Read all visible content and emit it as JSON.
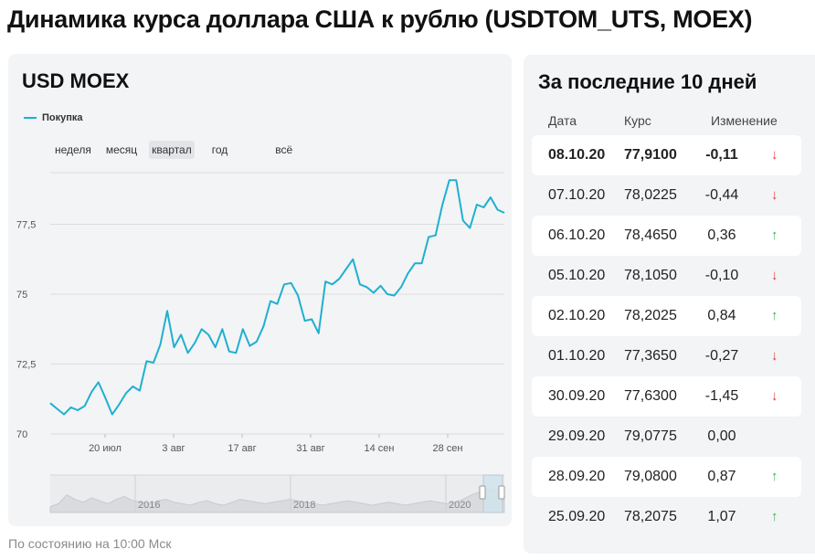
{
  "page": {
    "title": "Динамика курса доллара США к рублю (USDTOM_UTS, MOEX)",
    "note": "По состоянию на 10:00 Мск"
  },
  "chart_card": {
    "title": "USD MOEX",
    "legend_label": "Покупка",
    "periods": [
      "неделя",
      "месяц",
      "квартал",
      "год",
      "всё"
    ],
    "active_period": "квартал",
    "line_color": "#1fb0cf"
  },
  "chart_data": {
    "type": "line",
    "title": "USD MOEX",
    "xlabel": "",
    "ylabel": "",
    "ylim": [
      70,
      80
    ],
    "yticks": [
      "70",
      "72,5",
      "75",
      "77,5"
    ],
    "xticks": [
      "20 июл",
      "3 авг",
      "17 авг",
      "31 авг",
      "14 сен",
      "28 сен"
    ],
    "grid": true,
    "legend": "top-left",
    "series": [
      {
        "name": "Покупка",
        "values": [
          71.1,
          70.9,
          70.7,
          70.95,
          70.85,
          71.0,
          71.5,
          71.85,
          71.3,
          70.7,
          71.05,
          71.45,
          71.7,
          71.55,
          72.6,
          72.55,
          73.2,
          74.4,
          73.1,
          73.55,
          72.9,
          73.25,
          73.75,
          73.55,
          73.1,
          73.75,
          72.95,
          72.9,
          73.75,
          73.15,
          73.3,
          73.85,
          74.75,
          74.65,
          75.35,
          75.4,
          74.95,
          74.05,
          74.1,
          73.6,
          75.45,
          75.35,
          75.55,
          75.9,
          76.25,
          75.35,
          75.25,
          75.05,
          75.3,
          75.0,
          74.95,
          75.25,
          75.75,
          76.1,
          76.1,
          77.05,
          77.1,
          78.2,
          79.08,
          79.0775,
          77.63,
          77.365,
          78.2025,
          78.105,
          78.465,
          78.0225,
          77.91
        ]
      }
    ],
    "overview": {
      "tick_labels": [
        "2016",
        "2018",
        "2020"
      ]
    }
  },
  "table": {
    "title": "За последние 10 дней",
    "columns": [
      "Дата",
      "Курс",
      "Изменение"
    ],
    "rows": [
      {
        "date": "08.10.20",
        "rate": "77,9100",
        "change": "-0,11",
        "dir": "down"
      },
      {
        "date": "07.10.20",
        "rate": "78,0225",
        "change": "-0,44",
        "dir": "down"
      },
      {
        "date": "06.10.20",
        "rate": "78,4650",
        "change": "0,36",
        "dir": "up"
      },
      {
        "date": "05.10.20",
        "rate": "78,1050",
        "change": "-0,10",
        "dir": "down"
      },
      {
        "date": "02.10.20",
        "rate": "78,2025",
        "change": "0,84",
        "dir": "up"
      },
      {
        "date": "01.10.20",
        "rate": "77,3650",
        "change": "-0,27",
        "dir": "down"
      },
      {
        "date": "30.09.20",
        "rate": "77,6300",
        "change": "-1,45",
        "dir": "down"
      },
      {
        "date": "29.09.20",
        "rate": "79,0775",
        "change": "0,00",
        "dir": "none"
      },
      {
        "date": "28.09.20",
        "rate": "79,0800",
        "change": "0,87",
        "dir": "up"
      },
      {
        "date": "25.09.20",
        "rate": "78,2075",
        "change": "1,07",
        "dir": "up"
      }
    ],
    "up_color": "#3bb24a",
    "down_color": "#e03a3a"
  }
}
